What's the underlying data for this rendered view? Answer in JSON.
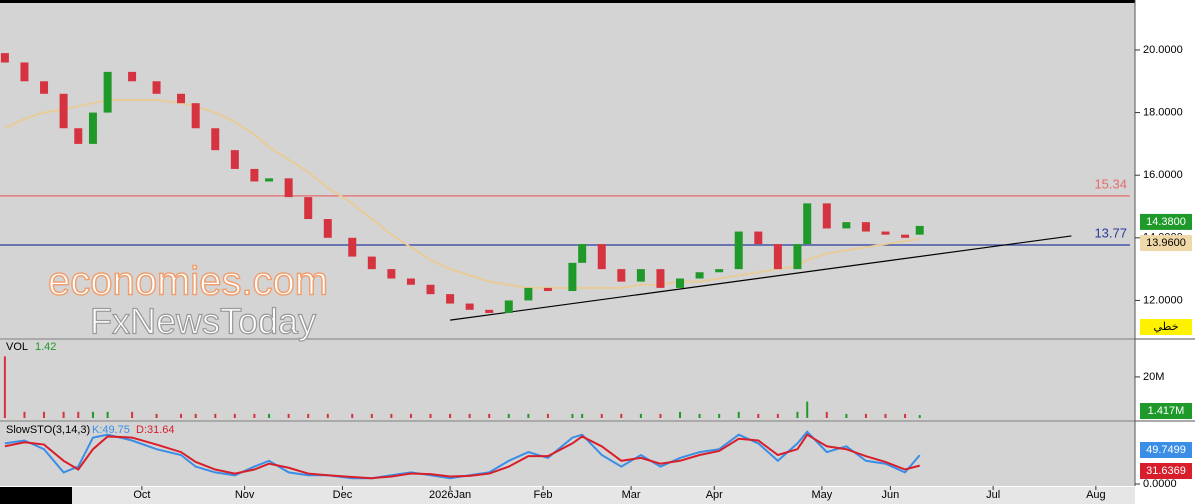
{
  "chart_data": {
    "type": "candlestick",
    "x": [
      0,
      4,
      8,
      12,
      15,
      18,
      21,
      26,
      31,
      36,
      39,
      43,
      47,
      51,
      54,
      58,
      62,
      66,
      71,
      75,
      79,
      83,
      87,
      91,
      95,
      99,
      103,
      107,
      111,
      116,
      118,
      122,
      126,
      130,
      134,
      138,
      142,
      146,
      150,
      154,
      158,
      162,
      164,
      168,
      172,
      176,
      180,
      184,
      187
    ],
    "open": [
      19.9,
      19.6,
      19.0,
      18.6,
      17.5,
      17.0,
      18.0,
      19.3,
      19.0,
      18.6,
      18.3,
      17.5,
      16.8,
      16.2,
      15.8,
      15.9,
      15.3,
      14.6,
      14.0,
      13.4,
      13.0,
      12.7,
      12.5,
      12.2,
      11.9,
      11.7,
      11.6,
      12.0,
      12.4,
      12.3,
      13.2,
      13.8,
      13.0,
      12.6,
      13.0,
      12.4,
      12.7,
      12.9,
      13.0,
      14.2,
      13.8,
      13.0,
      13.8,
      15.1,
      14.3,
      14.5,
      14.2,
      14.1,
      14.1
    ],
    "close": [
      19.6,
      19.0,
      18.6,
      17.5,
      17.0,
      18.0,
      19.3,
      19.0,
      18.6,
      18.3,
      17.5,
      16.8,
      16.2,
      15.8,
      15.9,
      15.3,
      14.6,
      14.0,
      13.4,
      13.0,
      12.7,
      12.5,
      12.2,
      11.9,
      11.7,
      11.6,
      12.0,
      12.4,
      12.3,
      13.2,
      13.8,
      13.0,
      12.6,
      13.0,
      12.4,
      12.7,
      12.9,
      13.0,
      14.2,
      13.8,
      13.0,
      13.8,
      15.1,
      14.3,
      14.5,
      14.2,
      14.1,
      14.0,
      14.38
    ],
    "up_color": "#1f9a2a",
    "down_color": "#d63340",
    "close_label": "14.3800",
    "mode_label": "خطي",
    "xlim": [
      -1,
      231
    ],
    "xticks": [
      {
        "value": 28,
        "label": "Oct"
      },
      {
        "value": 49,
        "label": "Nov"
      },
      {
        "value": 69,
        "label": "Dec"
      },
      {
        "value": 91,
        "label": "2026Jan"
      },
      {
        "value": 110,
        "label": "Feb"
      },
      {
        "value": 128,
        "label": "Mar"
      },
      {
        "value": 145,
        "label": "Apr"
      },
      {
        "value": 167,
        "label": "May"
      },
      {
        "value": 181,
        "label": "Jun"
      },
      {
        "value": 202,
        "label": "Jul"
      },
      {
        "value": 223,
        "label": "Aug"
      }
    ],
    "ylim": [
      10.8,
      21.5
    ],
    "yticks": [
      {
        "value": 12,
        "label": "12.0000"
      },
      {
        "value": 14,
        "label": "14.0000"
      },
      {
        "value": 16,
        "label": "16.0000"
      },
      {
        "value": 18,
        "label": "18.0000"
      },
      {
        "value": 20,
        "label": "20.0000"
      }
    ],
    "ma": {
      "color": "#e8cc98",
      "value_label": "13.9600",
      "values": [
        17.5,
        17.8,
        18.0,
        18.1,
        18.2,
        18.3,
        18.4,
        18.4,
        18.4,
        18.3,
        18.2,
        18.0,
        17.7,
        17.3,
        16.9,
        16.5,
        16.1,
        15.6,
        15.1,
        14.6,
        14.1,
        13.7,
        13.3,
        13.0,
        12.8,
        12.6,
        12.5,
        12.4,
        12.4,
        12.4,
        12.4,
        12.4,
        12.4,
        12.5,
        12.5,
        12.6,
        12.6,
        12.7,
        12.8,
        12.9,
        13.0,
        13.1,
        13.3,
        13.5,
        13.6,
        13.7,
        13.8,
        13.9,
        13.96
      ]
    },
    "levels": [
      {
        "value": 15.34,
        "color": "#e56b6b"
      },
      {
        "value": 13.77,
        "color": "#2a3a9a"
      }
    ],
    "trendline": {
      "x": [
        91,
        218
      ],
      "y": [
        11.37,
        14.06
      ],
      "color": "#000000"
    },
    "watermark": [
      "economies.com",
      "FxNewsToday"
    ],
    "volume": {
      "label": "VOL",
      "current": 1.42,
      "value_label": "1.417M",
      "ylim": [
        0,
        37
      ],
      "yticks": [
        {
          "value": 20,
          "label": "20M"
        }
      ],
      "values": [
        30,
        3,
        3,
        3,
        3,
        3,
        3,
        3,
        2,
        2,
        2,
        2,
        2,
        2,
        2,
        2,
        2,
        2,
        2,
        2,
        2,
        2,
        2,
        2,
        2,
        2,
        2,
        2,
        2,
        2,
        2,
        2,
        2,
        2,
        2,
        3,
        2,
        2,
        3,
        2,
        2,
        3,
        8,
        3,
        2,
        2,
        2,
        2,
        1.417
      ]
    },
    "stochastic": {
      "title": "SlowSTO(3,14,3)",
      "ylim": [
        0,
        100
      ],
      "yticks": [
        {
          "value": 0,
          "label": "0.0000"
        }
      ],
      "series": [
        {
          "name": "K",
          "legend_label": "K:49.75",
          "color": "#3a8ee6",
          "value_label": "49.7499",
          "values": [
            70,
            75,
            60,
            20,
            30,
            80,
            85,
            75,
            60,
            50,
            30,
            20,
            15,
            30,
            40,
            20,
            15,
            15,
            10,
            10,
            15,
            20,
            15,
            10,
            15,
            20,
            40,
            55,
            45,
            80,
            85,
            50,
            30,
            50,
            30,
            45,
            55,
            60,
            85,
            70,
            40,
            70,
            90,
            55,
            65,
            40,
            35,
            20,
            49.75
          ]
        },
        {
          "name": "D",
          "legend_label": "D:31.64",
          "color": "#d81e2a",
          "value_label": "31.6369",
          "values": [
            65,
            72,
            68,
            40,
            25,
            60,
            82,
            80,
            68,
            55,
            38,
            25,
            18,
            25,
            35,
            28,
            18,
            15,
            12,
            10,
            13,
            18,
            17,
            13,
            14,
            18,
            30,
            48,
            48,
            70,
            82,
            65,
            40,
            45,
            35,
            40,
            50,
            57,
            78,
            75,
            50,
            60,
            85,
            65,
            60,
            48,
            38,
            25,
            31.64
          ]
        }
      ]
    }
  }
}
